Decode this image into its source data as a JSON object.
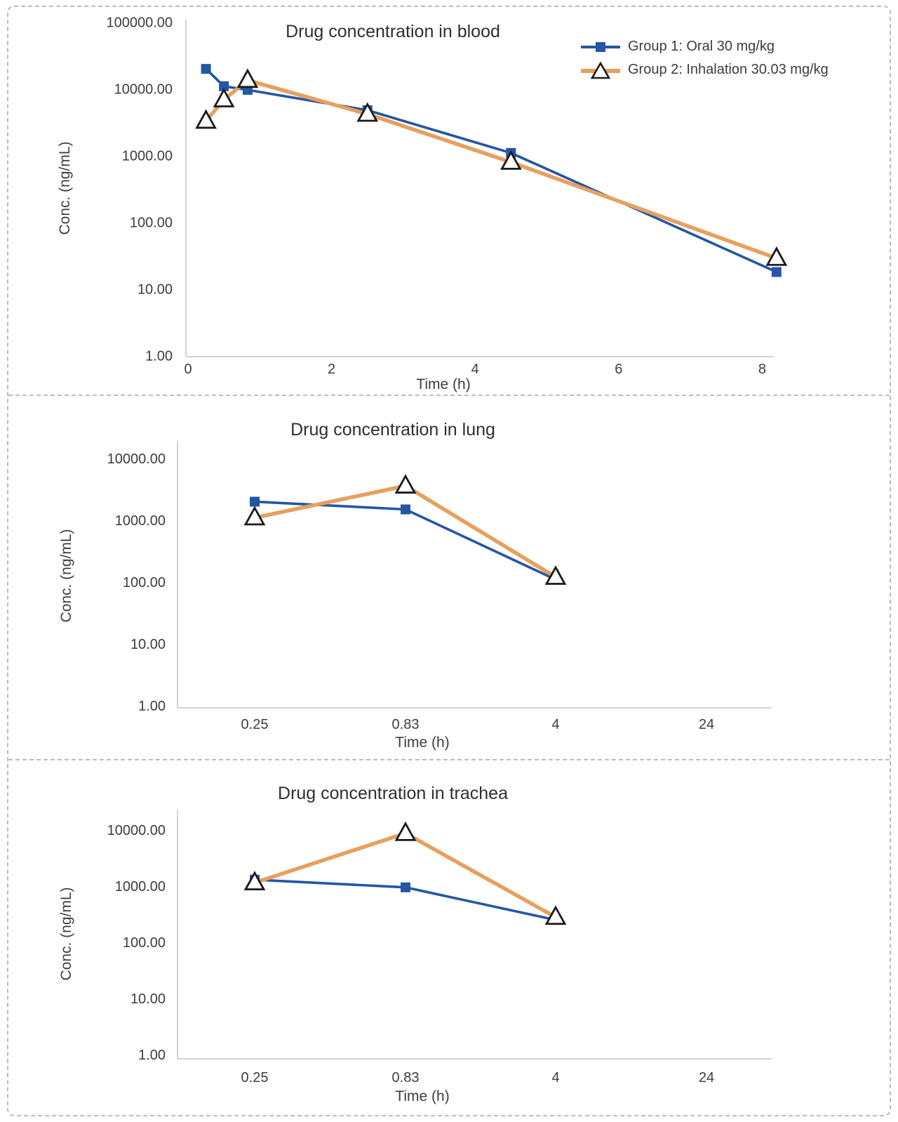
{
  "legend": {
    "group1": "Group 1: Oral 30 mg/kg",
    "group2": "Group 2: Inhalation 30.03 mg/kg",
    "position": "top-right"
  },
  "colors": {
    "group1_blue": "#2456A4",
    "group2_orange": "#E6A05F",
    "triangle_fill": "#ffffff",
    "triangle_outline": "#1a1a1a",
    "axis_line": "#d2d2d2",
    "text": "#3d3d3d"
  },
  "chart_data": [
    {
      "type": "line",
      "title": "Drug concentration in blood",
      "xlabel": "Time (h)",
      "ylabel": "Conc. (ng/mL)",
      "x_scale": "linear",
      "y_scale": "log",
      "ylim": [
        1,
        100000
      ],
      "xlim": [
        0,
        8.2
      ],
      "grid": "off",
      "y_ticks": [
        "100000.00",
        "10000.00",
        "1000.00",
        "100.00",
        "10.00",
        "1.00"
      ],
      "x_ticks": [
        "0",
        "2",
        "4",
        "6",
        "8"
      ],
      "x_tick_values": [
        0,
        2,
        4,
        6,
        8
      ],
      "series": [
        {
          "name": "Group 1: Oral 30 mg/kg",
          "x": [
            0.25,
            0.5,
            0.83,
            2.5,
            4.5,
            8.2
          ],
          "y": [
            20000,
            11000,
            9700,
            4800,
            1100,
            18
          ]
        },
        {
          "name": "Group 2: Inhalation 30.03 mg/kg",
          "x": [
            0.25,
            0.5,
            0.83,
            2.5,
            4.5,
            8.2
          ],
          "y": [
            3300,
            6900,
            13500,
            4200,
            800,
            29
          ]
        }
      ]
    },
    {
      "type": "line",
      "title": "Drug concentration in lung",
      "xlabel": "Time (h)",
      "ylabel": "Conc. (ng/mL)",
      "x_scale": "category",
      "y_scale": "log",
      "ylim": [
        1,
        10000
      ],
      "grid": "off",
      "y_ticks": [
        "10000.00",
        "1000.00",
        "100.00",
        "10.00",
        "1.00"
      ],
      "categories": [
        "0.25",
        "0.83",
        "4",
        "24"
      ],
      "series": [
        {
          "name": "Group 1: Oral 30 mg/kg",
          "y": [
            2000,
            1500,
            110,
            null
          ]
        },
        {
          "name": "Group 2: Inhalation 30.03 mg/kg",
          "y": [
            1100,
            3600,
            120,
            null
          ]
        }
      ]
    },
    {
      "type": "line",
      "title": "Drug concentration in trachea",
      "xlabel": "Time (h)",
      "ylabel": "Conc. (ng/mL)",
      "x_scale": "category",
      "y_scale": "log",
      "ylim": [
        1,
        10000
      ],
      "grid": "off",
      "y_ticks": [
        "10000.00",
        "1000.00",
        "100.00",
        "10.00",
        "1.00"
      ],
      "categories": [
        "0.25",
        "0.83",
        "4",
        "24"
      ],
      "series": [
        {
          "name": "Group 1: Oral 30 mg/kg",
          "y": [
            1300,
            950,
            250,
            null
          ]
        },
        {
          "name": "Group 2: Inhalation 30.03 mg/kg",
          "y": [
            1150,
            8700,
            280,
            null
          ]
        }
      ]
    }
  ]
}
